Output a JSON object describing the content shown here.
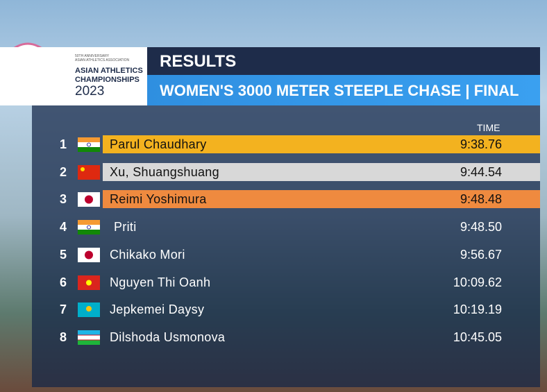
{
  "logo": {
    "line1": "50TH ANNIVERSARY",
    "line2": "ASIAN ATHLETICS ASSOCIATION",
    "title1": "ASIAN ATHLETICS",
    "title2": "CHAMPIONSHIPS",
    "year": "2023"
  },
  "header": {
    "title": "RESULTS",
    "subtitle": "WOMEN'S 3000 METER STEEPLE CHASE | FINAL"
  },
  "table": {
    "time_header": "TIME",
    "rows": [
      [
        "1",
        "Parul Chaudhary",
        "9:38.76"
      ],
      [
        "2",
        "Xu, Shuangshuang",
        "9:44.54"
      ],
      [
        "3",
        "Reimi Yoshimura",
        "9:48.48"
      ],
      [
        "4",
        "Priti",
        "9:48.50"
      ],
      [
        "5",
        "Chikako Mori",
        "9:56.67"
      ],
      [
        "6",
        "Nguyen Thi Oanh",
        "10:09.62"
      ],
      [
        "7",
        "Jepkemei Daysy",
        "10:19.19"
      ],
      [
        "8",
        "Dilshoda Usmonova",
        "10:45.05"
      ]
    ]
  }
}
